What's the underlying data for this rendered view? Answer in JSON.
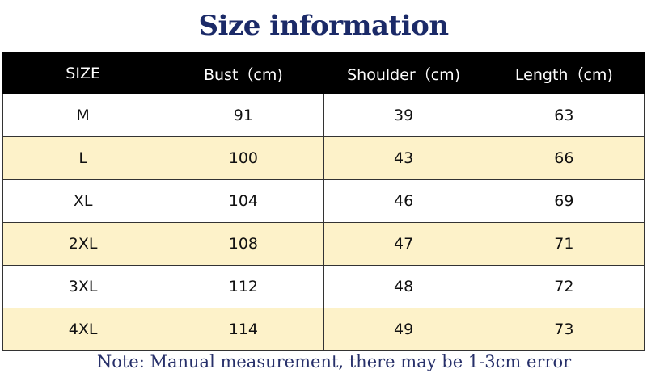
{
  "title": "Size information",
  "headers": [
    "SIZE",
    "Bust（cm)",
    "Shoulder（cm)",
    "Length（cm)"
  ],
  "rows": [
    [
      "M",
      "91",
      "39",
      "63"
    ],
    [
      "L",
      "100",
      "43",
      "66"
    ],
    [
      "XL",
      "104",
      "46",
      "69"
    ],
    [
      "2XL",
      "108",
      "47",
      "71"
    ],
    [
      "3XL",
      "112",
      "48",
      "72"
    ],
    [
      "4XL",
      "114",
      "49",
      "73"
    ]
  ],
  "note": "Note: Manual measurement, there may be 1-3cm error",
  "colors": {
    "title": "#1b2a68",
    "header_bg": "#000000",
    "alt_row": "#fdf2c9"
  }
}
